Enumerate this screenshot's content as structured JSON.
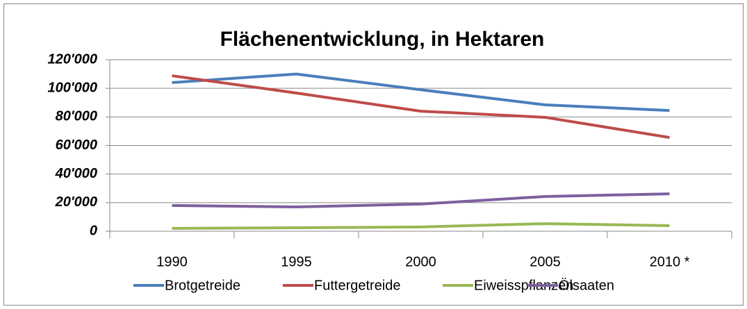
{
  "chart_data": {
    "type": "line",
    "title": "Flächenentwicklung, in Hektaren",
    "categories": [
      "1990",
      "1995",
      "2000",
      "2005",
      "2010 *"
    ],
    "series": [
      {
        "name": "Brotgetreide",
        "color": "#4a7ebb",
        "values": [
          104000,
          110000,
          99000,
          88400,
          84500
        ]
      },
      {
        "name": "Futtergetreide",
        "color": "#be4b48",
        "values": [
          108800,
          96700,
          84000,
          79700,
          65600
        ]
      },
      {
        "name": "Eiweisspflanzen",
        "color": "#98b954",
        "values": [
          2000,
          2400,
          3000,
          5300,
          3900
        ]
      },
      {
        "name": "Ölsaaten",
        "color": "#7d60a0",
        "values": [
          18000,
          17000,
          19000,
          24300,
          26200
        ]
      }
    ],
    "ylim": [
      0,
      120000
    ],
    "yticks": [
      0,
      {
        "value": 20000,
        "label": "20'000"
      },
      {
        "value": 40000,
        "label": "40'000"
      },
      {
        "value": 60000,
        "label": "60'000"
      },
      {
        "value": 80000,
        "label": "80'000"
      },
      {
        "value": 100000,
        "label": "100'000"
      },
      {
        "value": 120000,
        "label": "120'000"
      }
    ],
    "grid": true,
    "legend": "bottom"
  }
}
